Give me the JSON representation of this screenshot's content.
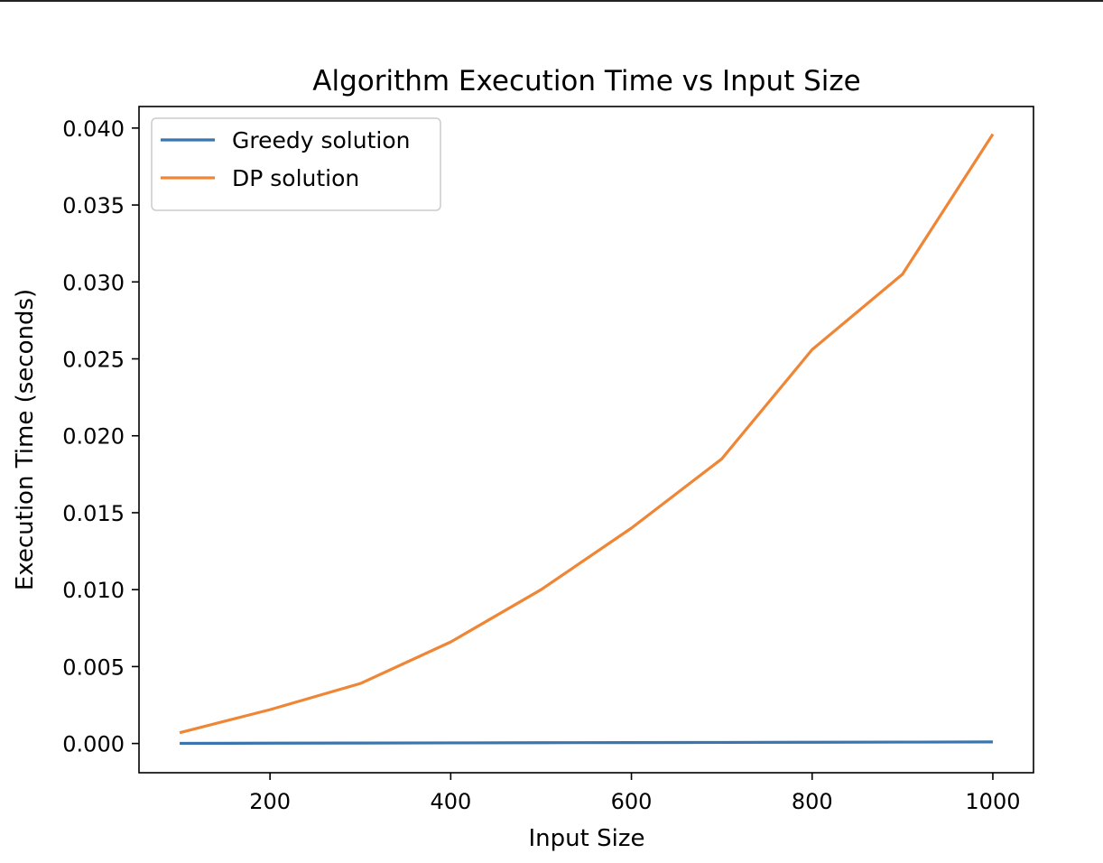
{
  "chart_data": {
    "type": "line",
    "title": "Algorithm Execution Time vs Input Size",
    "xlabel": "Input Size",
    "ylabel": "Execution Time (seconds)",
    "x": [
      100,
      200,
      300,
      400,
      500,
      600,
      700,
      800,
      900,
      1000
    ],
    "xlim": [
      55,
      1045
    ],
    "ylim": [
      -0.0019,
      0.0414
    ],
    "xticks": [
      200,
      400,
      600,
      800,
      1000
    ],
    "xtick_labels": [
      "200",
      "400",
      "600",
      "800",
      "1000"
    ],
    "yticks": [
      0.0,
      0.005,
      0.01,
      0.015,
      0.02,
      0.025,
      0.03,
      0.035,
      0.04
    ],
    "ytick_labels": [
      "0.000",
      "0.005",
      "0.010",
      "0.015",
      "0.020",
      "0.025",
      "0.030",
      "0.035",
      "0.040"
    ],
    "grid": false,
    "legend_position": "top-left",
    "series": [
      {
        "name": "Greedy solution",
        "color": "#3b75af",
        "values": [
          1e-05,
          2e-05,
          3e-05,
          4e-05,
          5e-05,
          6e-05,
          7e-05,
          8e-05,
          9e-05,
          0.0001
        ]
      },
      {
        "name": "DP solution",
        "color": "#ef8636",
        "values": [
          0.0007,
          0.0022,
          0.0039,
          0.0066,
          0.01,
          0.014,
          0.0185,
          0.0256,
          0.0305,
          0.0396
        ]
      }
    ]
  }
}
